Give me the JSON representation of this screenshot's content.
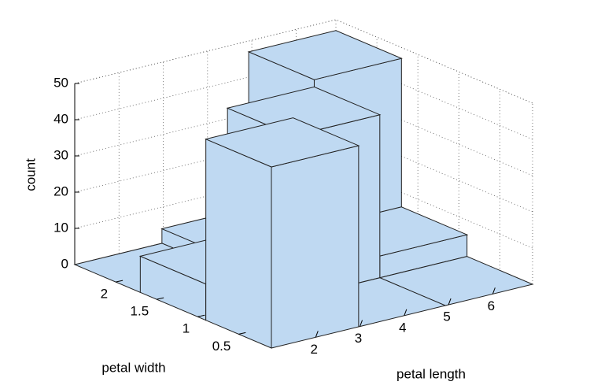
{
  "chart_data": {
    "type": "bar3d",
    "xlabel": "petal length",
    "ylabel": "petal width",
    "zlabel": "count",
    "xbins": [
      1,
      2.97,
      4.93,
      6.9
    ],
    "ybins": [
      0.1,
      0.9,
      1.7,
      2.5
    ],
    "values": [
      [
        50,
        0,
        0
      ],
      [
        10,
        45,
        6
      ],
      [
        0,
        4,
        47
      ]
    ],
    "xlim": [
      1,
      6.9
    ],
    "ylim": [
      0.1,
      2.5
    ],
    "zlim": [
      0,
      50
    ],
    "xticks": [
      2,
      3,
      4,
      5,
      6
    ],
    "yticks": [
      0.5,
      1,
      1.5,
      2
    ],
    "zticks": [
      0,
      10,
      20,
      30,
      40,
      50
    ],
    "color": "#bfd9f2",
    "grid": true
  }
}
